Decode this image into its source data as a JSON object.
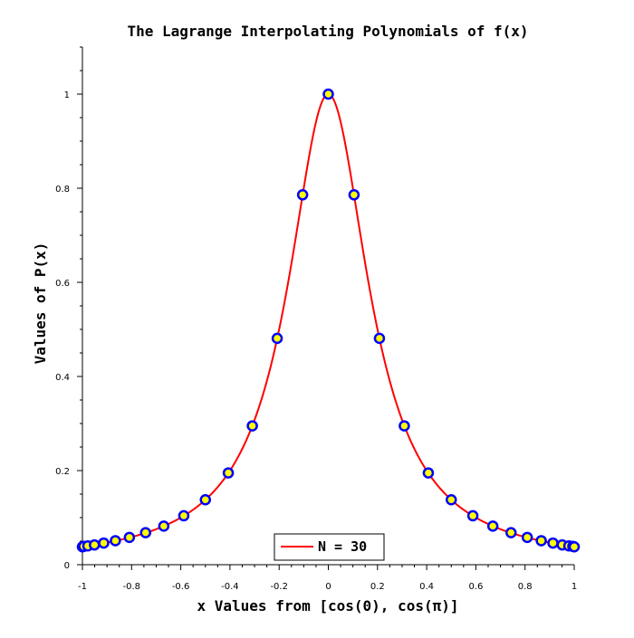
{
  "chart_data": {
    "type": "line",
    "title": "The Lagrange Interpolating Polynomials of f(x)",
    "xlabel": "x Values from [cos(0), cos(π)]",
    "ylabel": "Values of P(x)",
    "xlim": [
      -1,
      1
    ],
    "ylim": [
      0,
      1.1
    ],
    "x_ticks": [
      -1,
      -0.8,
      -0.6,
      -0.4,
      -0.2,
      0,
      0.2,
      0.4,
      0.6,
      0.8,
      1
    ],
    "x_tick_labels": [
      "-1",
      "-0.8",
      "-0.6",
      "-0.4",
      "-0.2",
      "0",
      "0.2",
      "0.4",
      "0.6",
      "0.8",
      "1"
    ],
    "y_ticks": [
      0,
      0.2,
      0.4,
      0.6,
      0.8,
      1
    ],
    "y_tick_labels": [
      "0",
      "0.2",
      "0.4",
      "0.6",
      "0.8",
      "1"
    ],
    "grid": false,
    "legend_position": "bottom-center",
    "series": [
      {
        "name": "N = 30",
        "kind": "curve",
        "function": "1/(1+25x^2)",
        "color": "#ff0000"
      },
      {
        "kind": "points",
        "marker_fill": "#ffff00",
        "marker_edge": "#0000ff",
        "x": [
          -1,
          -0.9945,
          -0.9781,
          -0.9511,
          -0.9135,
          -0.866,
          -0.809,
          -0.7431,
          -0.6691,
          -0.5878,
          -0.5,
          -0.4067,
          -0.309,
          -0.2079,
          -0.1045,
          0,
          0.1045,
          0.2079,
          0.309,
          0.4067,
          0.5,
          0.5878,
          0.6691,
          0.7431,
          0.809,
          0.866,
          0.9135,
          0.9511,
          0.9781,
          0.9945,
          1
        ],
        "y": [
          0.038,
          0.039,
          0.04,
          0.042,
          0.046,
          0.051,
          0.058,
          0.068,
          0.082,
          0.104,
          0.138,
          0.195,
          0.295,
          0.481,
          0.786,
          1.0,
          0.786,
          0.481,
          0.295,
          0.195,
          0.138,
          0.104,
          0.082,
          0.068,
          0.058,
          0.051,
          0.046,
          0.042,
          0.04,
          0.039,
          0.038
        ]
      }
    ]
  }
}
